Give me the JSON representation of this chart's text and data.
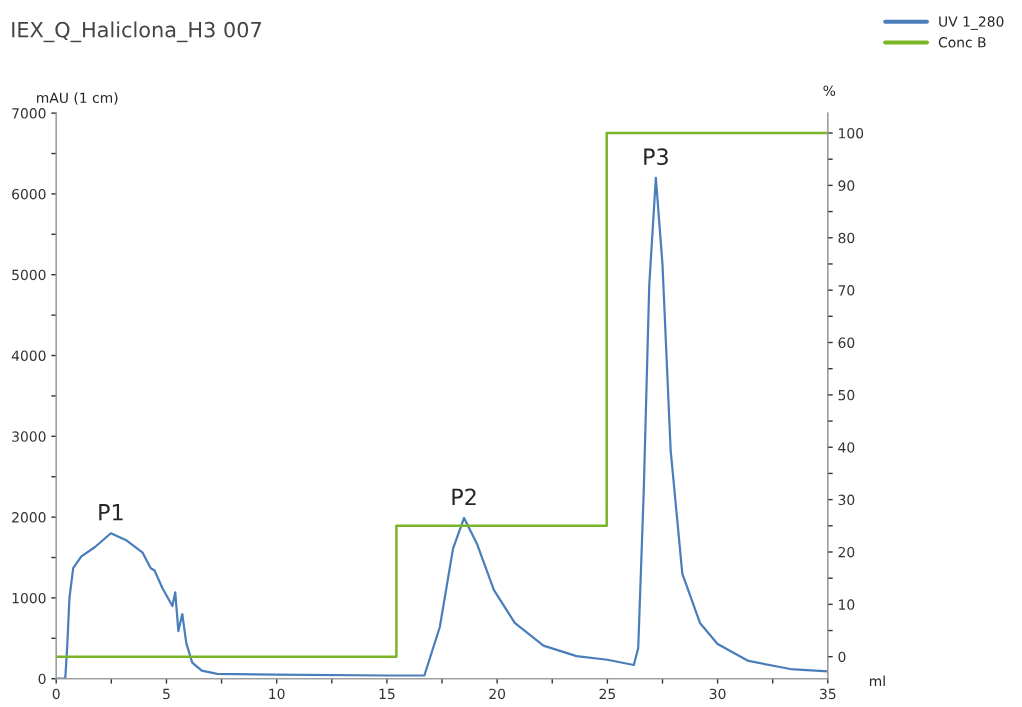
{
  "chart_data": {
    "type": "line",
    "title": "IEX_Q_Haliclona_H3 007",
    "xlabel": "ml",
    "ylabel": "mAU (1 cm)",
    "y2label": "%",
    "xlim": [
      0,
      35
    ],
    "xticks": [
      0,
      {
        "value": 2.5,
        "label": null
      },
      5,
      {
        "value": 7.5,
        "label": null
      },
      10,
      {
        "value": 12.5,
        "label": null
      },
      15,
      {
        "value": 17.5,
        "label": null
      },
      20,
      {
        "value": 22.5,
        "label": null
      },
      25,
      {
        "value": 27.5,
        "label": null
      },
      30,
      {
        "value": 32.5,
        "label": null
      },
      35
    ],
    "ylim": [
      0,
      7000
    ],
    "yticks": [
      0,
      {
        "value": 500,
        "label": null
      },
      1000,
      {
        "value": 1500,
        "label": null
      },
      2000,
      {
        "value": 2500,
        "label": null
      },
      3000,
      {
        "value": 3500,
        "label": null
      },
      4000,
      {
        "value": 4500,
        "label": null
      },
      5000,
      {
        "value": 5500,
        "label": null
      },
      6000,
      {
        "value": 6500,
        "label": null
      },
      7000
    ],
    "y2lim": [
      -4.2,
      103.8
    ],
    "y2ticks": [
      0,
      {
        "value": 5,
        "label": null
      },
      10,
      {
        "value": 15,
        "label": null
      },
      20,
      {
        "value": 25,
        "label": null
      },
      30,
      {
        "value": 35,
        "label": null
      },
      40,
      {
        "value": 45,
        "label": null
      },
      50,
      {
        "value": 55,
        "label": null
      },
      60,
      {
        "value": 65,
        "label": null
      },
      70,
      {
        "value": 75,
        "label": null
      },
      80,
      {
        "value": 85,
        "label": null
      },
      90,
      {
        "value": 95,
        "label": null
      },
      100
    ],
    "grid": false,
    "legend": "top right",
    "marker": "none",
    "line_style": "solid",
    "series": [
      {
        "name": "UV 1_280",
        "color": "#4a7ebb",
        "x": [
          0,
          0.41,
          0.5,
          0.6,
          0.77,
          1.13,
          1.76,
          2.48,
          3.2,
          3.92,
          4.28,
          4.46,
          4.82,
          5.27,
          5.4,
          5.54,
          5.72,
          5.9,
          6.17,
          6.6,
          7.3,
          10,
          15,
          16.7,
          17.4,
          18.0,
          18.5,
          19.1,
          19.85,
          20.8,
          22.1,
          23.6,
          25,
          26.2,
          26.4,
          26.65,
          26.9,
          27.2,
          27.5,
          27.87,
          28.4,
          29.2,
          30,
          31.4,
          33.3,
          35
        ],
        "values": [
          0,
          0,
          400,
          1000,
          1370,
          1510,
          1630,
          1800,
          1710,
          1560,
          1370,
          1340,
          1120,
          900,
          1070,
          590,
          800,
          440,
          200,
          100,
          60,
          50,
          40,
          40,
          640,
          1610,
          1990,
          1660,
          1100,
          690,
          410,
          280,
          235,
          170,
          380,
          2320,
          4870,
          6200,
          5130,
          2830,
          1300,
          690,
          430,
          220,
          120,
          90
        ]
      },
      {
        "name": "Conc B",
        "color": "#7ab526",
        "type": "step",
        "axis": "y2",
        "x": [
          0,
          15.43,
          24.97,
          35
        ],
        "values": [
          0,
          25,
          100,
          100
        ]
      }
    ],
    "annotations": [
      {
        "text": "P1",
        "x": 2.48,
        "y": 1800
      },
      {
        "text": "P2",
        "x": 18.5,
        "y": 1990
      },
      {
        "text": "P3",
        "x": 27.2,
        "y": 6200
      }
    ]
  }
}
